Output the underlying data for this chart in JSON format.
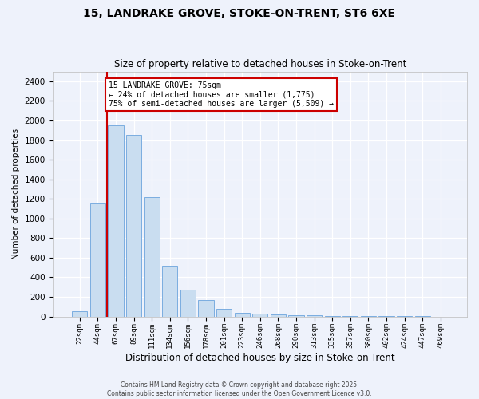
{
  "title_line1": "15, LANDRAKE GROVE, STOKE-ON-TRENT, ST6 6XE",
  "title_line2": "Size of property relative to detached houses in Stoke-on-Trent",
  "xlabel": "Distribution of detached houses by size in Stoke-on-Trent",
  "ylabel": "Number of detached properties",
  "bar_color": "#c9ddf0",
  "bar_edge_color": "#7aade0",
  "background_color": "#eef2fb",
  "grid_color": "#ffffff",
  "annotation_box_color": "#cc0000",
  "vline_color": "#cc0000",
  "categories": [
    "22sqm",
    "44sqm",
    "67sqm",
    "89sqm",
    "111sqm",
    "134sqm",
    "156sqm",
    "178sqm",
    "201sqm",
    "223sqm",
    "246sqm",
    "268sqm",
    "290sqm",
    "313sqm",
    "335sqm",
    "357sqm",
    "380sqm",
    "402sqm",
    "424sqm",
    "447sqm",
    "469sqm"
  ],
  "values": [
    55,
    1150,
    1950,
    1850,
    1220,
    520,
    270,
    170,
    75,
    40,
    30,
    20,
    15,
    10,
    5,
    3,
    2,
    1,
    1,
    1,
    0
  ],
  "ylim": [
    0,
    2500
  ],
  "yticks": [
    0,
    200,
    400,
    600,
    800,
    1000,
    1200,
    1400,
    1600,
    1800,
    2000,
    2200,
    2400
  ],
  "vline_x": 1.5,
  "annotation_text": "15 LANDRAKE GROVE: 75sqm\n← 24% of detached houses are smaller (1,775)\n75% of semi-detached houses are larger (5,509) →",
  "footnote_line1": "Contains HM Land Registry data © Crown copyright and database right 2025.",
  "footnote_line2": "Contains public sector information licensed under the Open Government Licence v3.0."
}
